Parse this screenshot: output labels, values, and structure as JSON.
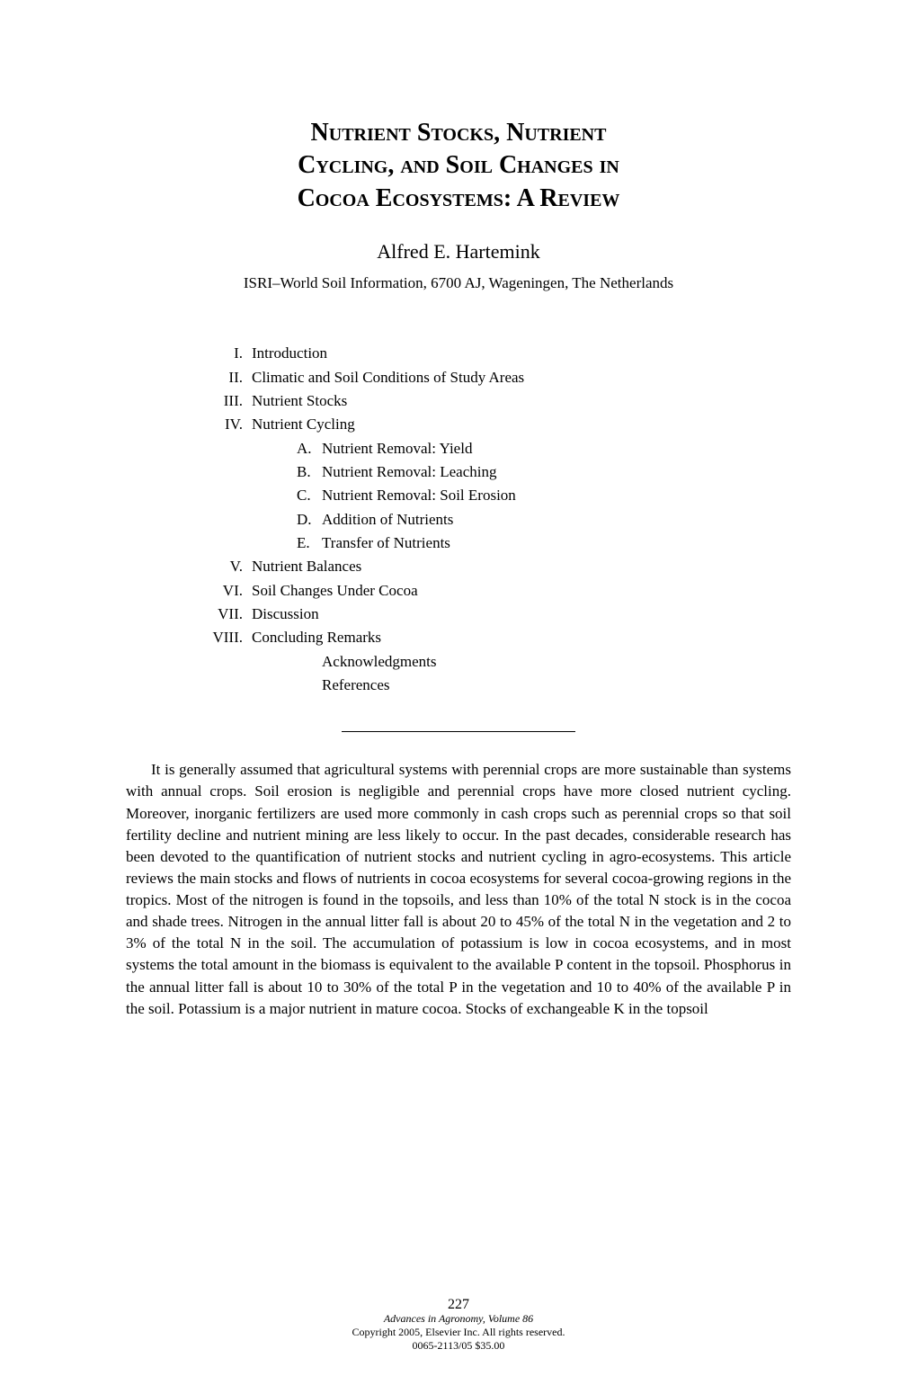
{
  "title": {
    "line1": "Nutrient Stocks, Nutrient",
    "line2": "Cycling, and Soil Changes in",
    "line3": "Cocoa Ecosystems: A Review"
  },
  "author": "Alfred E. Hartemink",
  "affiliation": "ISRI–World Soil Information, 6700 AJ, Wageningen, The Netherlands",
  "toc": {
    "items": [
      {
        "num": "I.",
        "label": "Introduction"
      },
      {
        "num": "II.",
        "label": "Climatic and Soil Conditions of Study Areas"
      },
      {
        "num": "III.",
        "label": "Nutrient Stocks"
      },
      {
        "num": "IV.",
        "label": "Nutrient Cycling"
      }
    ],
    "subs": [
      {
        "num": "A.",
        "label": "Nutrient Removal: Yield"
      },
      {
        "num": "B.",
        "label": "Nutrient Removal: Leaching"
      },
      {
        "num": "C.",
        "label": "Nutrient Removal: Soil Erosion"
      },
      {
        "num": "D.",
        "label": "Addition of Nutrients"
      },
      {
        "num": "E.",
        "label": "Transfer of Nutrients"
      }
    ],
    "items2": [
      {
        "num": "V.",
        "label": "Nutrient Balances"
      },
      {
        "num": "VI.",
        "label": "Soil Changes Under Cocoa"
      },
      {
        "num": "VII.",
        "label": "Discussion"
      },
      {
        "num": "VIII.",
        "label": "Concluding Remarks"
      }
    ],
    "tail": [
      {
        "num": "",
        "label": "Acknowledgments"
      },
      {
        "num": "",
        "label": "References"
      }
    ]
  },
  "abstract": "It is generally assumed that agricultural systems with perennial crops are more sustainable than systems with annual crops. Soil erosion is negligible and perennial crops have more closed nutrient cycling. Moreover, inorganic fertilizers are used more commonly in cash crops such as perennial crops so that soil fertility decline and nutrient mining are less likely to occur. In the past decades, considerable research has been devoted to the quantification of nutrient stocks and nutrient cycling in agro-ecosystems. This article reviews the main stocks and flows of nutrients in cocoa ecosystems for several cocoa-growing regions in the tropics. Most of the nitrogen is found in the topsoils, and less than 10% of the total N stock is in the cocoa and shade trees. Nitrogen in the annual litter fall is about 20 to 45% of the total N in the vegetation and 2 to 3% of the total N in the soil. The accumulation of potassium is low in cocoa ecosystems, and in most systems the total amount in the biomass is equivalent to the available P content in the topsoil. Phosphorus in the annual litter fall is about 10 to 30% of the total P in the vegetation and 10 to 40% of the available P in the soil. Potassium is a major nutrient in mature cocoa. Stocks of exchangeable K in the topsoil",
  "page_number": "227",
  "footer": {
    "journal": "Advances in Agronomy, Volume 86",
    "copyright": "Copyright 2005, Elsevier Inc. All rights reserved.",
    "issn": "0065-2113/05 $35.00"
  }
}
